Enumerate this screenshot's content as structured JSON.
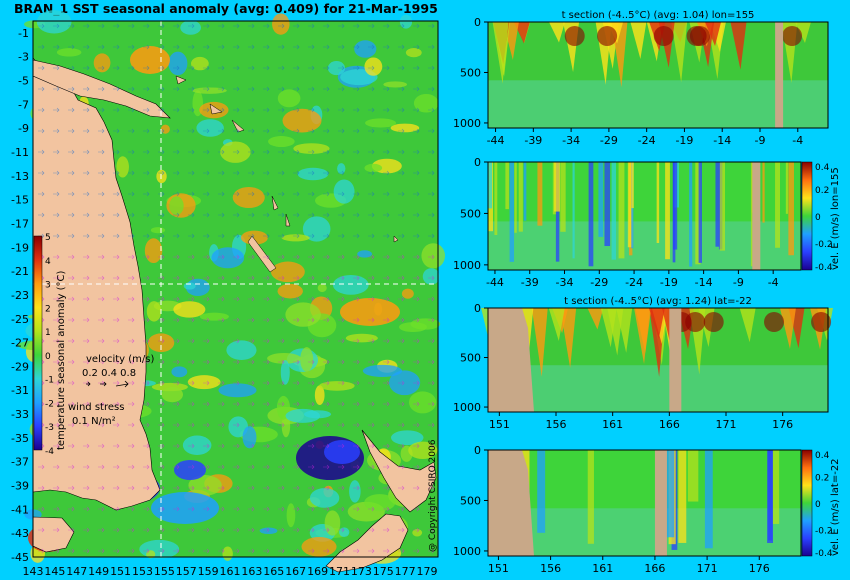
{
  "main_title": "BRAN_1 SST seasonal anomaly (avg: 0.409) for 21-Mar-1995",
  "copyright": "@ Copyright CSIRO 2006",
  "colors": {
    "background": "#00d0ff",
    "land": "#f2c4a0",
    "seabed": "#c8a888",
    "field_base": "#3ec83a",
    "scale": [
      "#1b0090",
      "#2a40ff",
      "#1fa0ff",
      "#2ed6d6",
      "#3ed43a",
      "#b4e21c",
      "#ffe21a",
      "#ff9a10",
      "#e03010",
      "#8a0000"
    ]
  },
  "chart_data": [
    {
      "type": "heatmap",
      "panel": "map",
      "title": "BRAN_1 SST seasonal anomaly (avg: 0.409) for 21-Mar-1995",
      "x_ticks": [
        "143",
        "145",
        "147",
        "149",
        "151",
        "153",
        "155",
        "157",
        "159",
        "161",
        "163",
        "165",
        "167",
        "169",
        "171",
        "173",
        "175",
        "177",
        "179"
      ],
      "y_ticks": [
        "-1",
        "-3",
        "-5",
        "-7",
        "-9",
        "-11",
        "-13",
        "-15",
        "-17",
        "-19",
        "-21",
        "-23",
        "-25",
        "-27",
        "-29",
        "-31",
        "-33",
        "-35",
        "-37",
        "-39",
        "-41",
        "-43",
        "-45"
      ],
      "xlim": [
        143,
        180
      ],
      "ylim": [
        -45,
        0
      ],
      "section_lon": 155,
      "section_lat": -22,
      "colorbar": {
        "label": "temperature seasonal anomaly (°C)",
        "ticks": [
          "5",
          "4",
          "3",
          "2",
          "1",
          "0",
          "-1",
          "-2",
          "-3",
          "-4"
        ],
        "range": [
          -4,
          5
        ]
      },
      "velocity_legend": {
        "label": "velocity (m/s)",
        "values": "0.2 0.4 0.8"
      },
      "wind_legend": {
        "label": "wind stress",
        "value": "0.1 N/m²"
      }
    },
    {
      "type": "heatmap",
      "panel": "section-1",
      "title": "t section (-4..5°C) (avg: 1.04) lon=155",
      "x_ticks": [
        "-44",
        "-39",
        "-34",
        "-29",
        "-24",
        "-19",
        "-14",
        "-9",
        "-4"
      ],
      "y_ticks": [
        "0",
        "500",
        "1000"
      ],
      "xlim": [
        -45,
        0
      ],
      "ylim": [
        1050,
        0
      ]
    },
    {
      "type": "heatmap",
      "panel": "section-2",
      "title": "",
      "x_ticks": [
        "-44",
        "-39",
        "-34",
        "-29",
        "-24",
        "-19",
        "-14",
        "-9",
        "-4"
      ],
      "y_ticks": [
        "0",
        "500",
        "1000"
      ],
      "xlim": [
        -45,
        0
      ],
      "ylim": [
        1050,
        0
      ],
      "colorbar": {
        "label": "vel. E (m/s) lon=155",
        "ticks": [
          "0.4",
          "0.2",
          "0",
          "-0.2",
          "-0.4"
        ],
        "range": [
          -0.4,
          0.4
        ]
      }
    },
    {
      "type": "heatmap",
      "panel": "section-3",
      "title": "t section (-4..5°C) (avg: 1.24) lat=-22",
      "x_ticks": [
        "151",
        "156",
        "161",
        "166",
        "171",
        "176"
      ],
      "y_ticks": [
        "0",
        "500",
        "1000"
      ],
      "xlim": [
        150,
        180
      ],
      "ylim": [
        1050,
        0
      ]
    },
    {
      "type": "heatmap",
      "panel": "section-4",
      "title": "",
      "x_ticks": [
        "151",
        "156",
        "161",
        "166",
        "171",
        "176"
      ],
      "y_ticks": [
        "0",
        "500",
        "1000"
      ],
      "xlim": [
        150,
        180
      ],
      "ylim": [
        1050,
        0
      ],
      "colorbar": {
        "label": "vel. E (m/s) lat=-22",
        "ticks": [
          "0.4",
          "0.2",
          "0",
          "-0.2",
          "-0.4"
        ],
        "range": [
          -0.4,
          0.4
        ]
      }
    }
  ]
}
